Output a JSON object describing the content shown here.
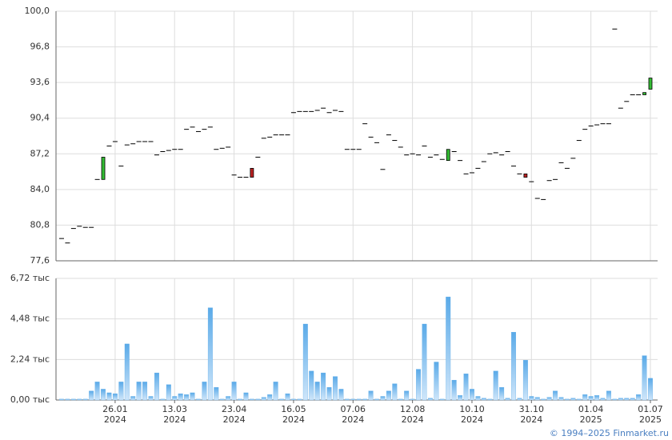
{
  "chart_data": [
    {
      "type": "candlestick",
      "up_color": "#33bb33",
      "down_color": "#bb2222",
      "flat_color": "#000000",
      "open": [
        79.6,
        79.2,
        80.5,
        80.7,
        80.6,
        80.5,
        84.9,
        84.9,
        87.9,
        88.3,
        86.1,
        88.0,
        88.1,
        88.3,
        88.3,
        88.3,
        87.1,
        87.4,
        87.5,
        87.6,
        87.6,
        89.4,
        89.6,
        89.2,
        89.4,
        89.6,
        87.6,
        87.7,
        87.8,
        85.3,
        85.1,
        85.1,
        85.9,
        86.9,
        88.6,
        88.7,
        88.9,
        88.9,
        88.9,
        90.9,
        91.0,
        91.0,
        91.0,
        91.1,
        91.3,
        90.9,
        91.1,
        91.0,
        87.6,
        87.6,
        87.6,
        89.9,
        88.7,
        88.2,
        85.8,
        88.9,
        88.4,
        87.8,
        87.1,
        87.1,
        87.1,
        87.9,
        86.9,
        87.1,
        86.7,
        86.6,
        87.4,
        86.6,
        85.4,
        85.5,
        85.9,
        86.5,
        87.2,
        87.3,
        87.1,
        87.4,
        86.1,
        85.4,
        85.4,
        84.7,
        83.2,
        83.1,
        84.8,
        84.9,
        86.4,
        85.9,
        86.8,
        88.4,
        89.4,
        89.7,
        89.8,
        89.9,
        89.9,
        98.4,
        91.3,
        91.9,
        92.5,
        92.5,
        92.5,
        93.0
      ],
      "close": [
        79.6,
        79.2,
        80.5,
        80.7,
        80.6,
        80.6,
        84.9,
        86.9,
        87.9,
        88.3,
        86.1,
        88.0,
        88.1,
        88.3,
        88.3,
        88.3,
        87.1,
        87.4,
        87.5,
        87.6,
        87.6,
        89.4,
        89.6,
        89.2,
        89.4,
        89.6,
        87.6,
        87.7,
        87.8,
        85.3,
        85.1,
        85.1,
        85.1,
        86.9,
        88.6,
        88.7,
        88.9,
        88.9,
        88.9,
        90.9,
        91.0,
        91.0,
        91.0,
        91.1,
        91.3,
        90.9,
        91.1,
        91.0,
        87.6,
        87.6,
        87.6,
        89.9,
        88.7,
        88.2,
        85.8,
        88.9,
        88.4,
        87.8,
        87.1,
        87.2,
        87.1,
        87.9,
        86.9,
        87.1,
        86.7,
        87.6,
        87.4,
        86.6,
        85.4,
        85.5,
        85.9,
        86.5,
        87.2,
        87.3,
        87.1,
        87.4,
        86.1,
        85.4,
        85.1,
        84.7,
        83.2,
        83.1,
        84.8,
        84.9,
        86.4,
        85.9,
        86.8,
        88.4,
        89.4,
        89.7,
        89.8,
        89.9,
        89.9,
        98.4,
        91.3,
        91.9,
        92.5,
        92.5,
        92.7,
        94.0
      ],
      "ylim": [
        77.6,
        100
      ],
      "yticks": [
        {
          "value": 77.6,
          "label": "77,6"
        },
        {
          "value": 80.8,
          "label": "80,8"
        },
        {
          "value": 84.0,
          "label": "84,0"
        },
        {
          "value": 87.2,
          "label": "87,2"
        },
        {
          "value": 90.4,
          "label": "90,4"
        },
        {
          "value": 93.6,
          "label": "93,6"
        },
        {
          "value": 96.8,
          "label": "96,8"
        },
        {
          "value": 100,
          "label": "100,0"
        }
      ],
      "grid": true
    },
    {
      "type": "bar",
      "color": "#5aaae8",
      "categories": [
        null,
        null,
        null,
        null,
        null,
        null,
        null,
        null,
        null,
        [
          "26.01",
          "2024"
        ],
        null,
        null,
        null,
        null,
        null,
        null,
        null,
        null,
        null,
        [
          "13.03",
          "2024"
        ],
        null,
        null,
        null,
        null,
        null,
        null,
        null,
        null,
        null,
        [
          "23.04",
          "2024"
        ],
        null,
        null,
        null,
        null,
        null,
        null,
        null,
        null,
        null,
        [
          "16.05",
          "2024"
        ],
        null,
        null,
        null,
        null,
        null,
        null,
        null,
        null,
        null,
        [
          "07.06",
          "2024"
        ],
        null,
        null,
        null,
        null,
        null,
        null,
        null,
        null,
        null,
        [
          "12.08",
          "2024"
        ],
        null,
        null,
        null,
        null,
        null,
        null,
        null,
        null,
        null,
        [
          "10.10",
          "2024"
        ],
        null,
        null,
        null,
        null,
        null,
        null,
        null,
        null,
        null,
        [
          "31.10",
          "2024"
        ],
        null,
        null,
        null,
        null,
        null,
        null,
        null,
        null,
        null,
        [
          "01.04",
          "2025"
        ],
        null,
        null,
        null,
        null,
        null,
        null,
        null,
        null,
        null,
        [
          "01.07",
          "2025"
        ]
      ],
      "values": [
        0.05,
        0.05,
        0.05,
        0.05,
        0.05,
        0.5,
        1.0,
        0.6,
        0.4,
        0.35,
        1.0,
        3.1,
        0.2,
        1.0,
        1.0,
        0.2,
        1.5,
        0.05,
        0.85,
        0.2,
        0.35,
        0.3,
        0.4,
        0.05,
        1.0,
        5.1,
        0.7,
        0.05,
        0.2,
        1.0,
        0.05,
        0.4,
        0.05,
        0.05,
        0.15,
        0.3,
        1.0,
        0.05,
        0.35,
        0.05,
        0.05,
        4.2,
        1.6,
        1.0,
        1.5,
        0.7,
        1.3,
        0.6,
        0.05,
        0.05,
        0.05,
        0.05,
        0.5,
        0.05,
        0.2,
        0.5,
        0.9,
        0.05,
        0.5,
        0.05,
        1.7,
        4.2,
        0.1,
        2.1,
        0.05,
        5.7,
        1.1,
        0.25,
        1.45,
        0.6,
        0.2,
        0.1,
        0.05,
        1.6,
        0.7,
        0.1,
        3.75,
        0.1,
        2.2,
        0.2,
        0.15,
        0.05,
        0.15,
        0.5,
        0.15,
        0.05,
        0.1,
        0.05,
        0.3,
        0.2,
        0.25,
        0.1,
        0.5,
        0.05,
        0.1,
        0.1,
        0.1,
        0.3,
        2.45,
        1.2
      ],
      "ylim": [
        0,
        6.72
      ],
      "yticks": [
        {
          "value": 0,
          "label": "0,00 тыс"
        },
        {
          "value": 2.24,
          "label": "2,24 тыс"
        },
        {
          "value": 4.48,
          "label": "4,48 тыс"
        },
        {
          "value": 6.72,
          "label": "6,72 тыс"
        }
      ],
      "grid": true
    }
  ],
  "footer": "© 1994–2025 Finmarket.ru"
}
